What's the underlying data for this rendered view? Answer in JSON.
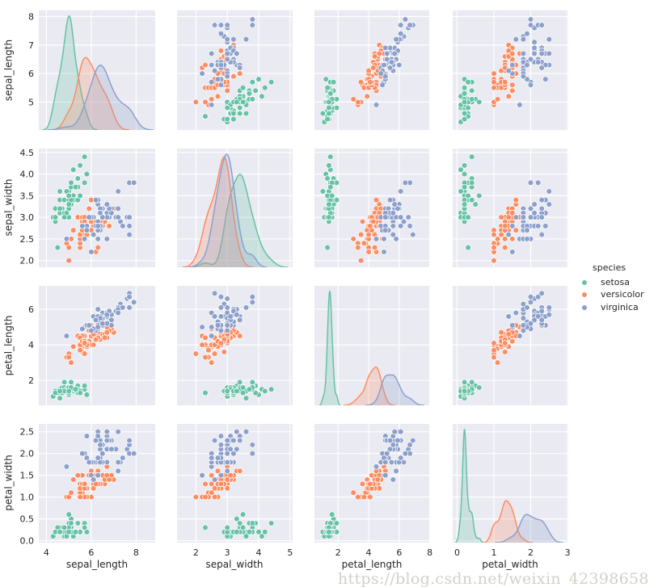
{
  "chart_data": {
    "type": "scatter",
    "kind": "pairplot",
    "diag_kind": "kde",
    "background": "#eaeaf2",
    "grid": true,
    "variables": [
      "sepal_length",
      "sepal_width",
      "petal_length",
      "petal_width"
    ],
    "axes": {
      "sepal_length": {
        "lim_x": [
          3.66,
          8.85
        ],
        "lim_y": [
          4.02,
          8.22
        ],
        "x_ticks": [
          4,
          6,
          8
        ],
        "x_tick_labels": [
          "4",
          "6",
          "8"
        ],
        "y_ticks": [
          5,
          6,
          7,
          8
        ],
        "y_tick_labels": [
          "5",
          "6",
          "7",
          "8"
        ]
      },
      "sepal_width": {
        "lim_x": [
          1.4,
          5.08
        ],
        "lim_y": [
          1.845,
          4.59
        ],
        "x_ticks": [
          2,
          3,
          4,
          5
        ],
        "x_tick_labels": [
          "2",
          "3",
          "4",
          "5"
        ],
        "y_ticks": [
          2.0,
          2.5,
          3.0,
          3.5,
          4.0,
          4.5
        ],
        "y_tick_labels": [
          "2.0",
          "2.5",
          "3.0",
          "3.5",
          "4.0",
          "4.5"
        ]
      },
      "petal_length": {
        "lim_x": [
          0.45,
          8.02
        ],
        "lim_y": [
          0.6,
          7.32
        ],
        "x_ticks": [
          2,
          4,
          6,
          8
        ],
        "x_tick_labels": [
          "2",
          "4",
          "6",
          "8"
        ],
        "y_ticks": [
          2,
          4,
          6
        ],
        "y_tick_labels": [
          "2",
          "4",
          "6"
        ]
      },
      "petal_width": {
        "lim_x": [
          -0.12,
          3.02
        ],
        "lim_y": [
          -0.045,
          2.68
        ],
        "x_ticks": [
          0,
          1,
          2,
          3
        ],
        "x_tick_labels": [
          "0",
          "1",
          "2",
          "3"
        ],
        "y_ticks": [
          0.0,
          0.5,
          1.0,
          1.5,
          2.0,
          2.5
        ],
        "y_tick_labels": [
          "0.0",
          "0.5",
          "1.0",
          "1.5",
          "2.0",
          "2.5"
        ]
      }
    },
    "legend": {
      "title": "species",
      "placement": "right"
    },
    "series": [
      {
        "name": "setosa",
        "color": "#66c2a5",
        "rows": [
          [
            5.1,
            3.5,
            1.4,
            0.2
          ],
          [
            4.9,
            3.0,
            1.4,
            0.2
          ],
          [
            4.7,
            3.2,
            1.3,
            0.2
          ],
          [
            4.6,
            3.1,
            1.5,
            0.2
          ],
          [
            5.0,
            3.6,
            1.4,
            0.2
          ],
          [
            5.4,
            3.9,
            1.7,
            0.4
          ],
          [
            4.6,
            3.4,
            1.4,
            0.3
          ],
          [
            5.0,
            3.4,
            1.5,
            0.2
          ],
          [
            4.4,
            2.9,
            1.4,
            0.2
          ],
          [
            4.9,
            3.1,
            1.5,
            0.1
          ],
          [
            5.4,
            3.7,
            1.5,
            0.2
          ],
          [
            4.8,
            3.4,
            1.6,
            0.2
          ],
          [
            4.8,
            3.0,
            1.4,
            0.1
          ],
          [
            4.3,
            3.0,
            1.1,
            0.1
          ],
          [
            5.8,
            4.0,
            1.2,
            0.2
          ],
          [
            5.7,
            4.4,
            1.5,
            0.4
          ],
          [
            5.4,
            3.9,
            1.3,
            0.4
          ],
          [
            5.1,
            3.5,
            1.4,
            0.3
          ],
          [
            5.7,
            3.8,
            1.7,
            0.3
          ],
          [
            5.1,
            3.8,
            1.5,
            0.3
          ],
          [
            5.4,
            3.4,
            1.7,
            0.2
          ],
          [
            5.1,
            3.7,
            1.5,
            0.4
          ],
          [
            4.6,
            3.6,
            1.0,
            0.2
          ],
          [
            5.1,
            3.3,
            1.7,
            0.5
          ],
          [
            4.8,
            3.4,
            1.9,
            0.2
          ],
          [
            5.0,
            3.0,
            1.6,
            0.2
          ],
          [
            5.0,
            3.4,
            1.6,
            0.4
          ],
          [
            5.2,
            3.5,
            1.5,
            0.2
          ],
          [
            5.2,
            3.4,
            1.4,
            0.2
          ],
          [
            4.7,
            3.2,
            1.6,
            0.2
          ],
          [
            4.8,
            3.1,
            1.6,
            0.2
          ],
          [
            5.4,
            3.4,
            1.5,
            0.4
          ],
          [
            5.2,
            4.1,
            1.5,
            0.1
          ],
          [
            5.5,
            4.2,
            1.4,
            0.2
          ],
          [
            4.9,
            3.1,
            1.5,
            0.2
          ],
          [
            5.0,
            3.2,
            1.2,
            0.2
          ],
          [
            5.5,
            3.5,
            1.3,
            0.2
          ],
          [
            4.9,
            3.6,
            1.4,
            0.1
          ],
          [
            4.4,
            3.0,
            1.3,
            0.2
          ],
          [
            5.1,
            3.4,
            1.5,
            0.2
          ],
          [
            5.0,
            3.5,
            1.3,
            0.3
          ],
          [
            4.5,
            2.3,
            1.3,
            0.3
          ],
          [
            4.4,
            3.2,
            1.3,
            0.2
          ],
          [
            5.0,
            3.5,
            1.6,
            0.6
          ],
          [
            5.1,
            3.8,
            1.9,
            0.4
          ],
          [
            4.8,
            3.0,
            1.4,
            0.3
          ],
          [
            5.1,
            3.8,
            1.6,
            0.2
          ],
          [
            4.6,
            3.2,
            1.4,
            0.2
          ],
          [
            5.3,
            3.7,
            1.5,
            0.2
          ],
          [
            5.0,
            3.3,
            1.4,
            0.2
          ]
        ]
      },
      {
        "name": "versicolor",
        "color": "#fc8d62",
        "rows": [
          [
            7.0,
            3.2,
            4.7,
            1.4
          ],
          [
            6.4,
            3.2,
            4.5,
            1.5
          ],
          [
            6.9,
            3.1,
            4.9,
            1.5
          ],
          [
            5.5,
            2.3,
            4.0,
            1.3
          ],
          [
            6.5,
            2.8,
            4.6,
            1.5
          ],
          [
            5.7,
            2.8,
            4.5,
            1.3
          ],
          [
            6.3,
            3.3,
            4.7,
            1.6
          ],
          [
            4.9,
            2.4,
            3.3,
            1.0
          ],
          [
            6.6,
            2.9,
            4.6,
            1.3
          ],
          [
            5.2,
            2.7,
            3.9,
            1.4
          ],
          [
            5.0,
            2.0,
            3.5,
            1.0
          ],
          [
            5.9,
            3.0,
            4.2,
            1.5
          ],
          [
            6.0,
            2.2,
            4.0,
            1.0
          ],
          [
            6.1,
            2.9,
            4.7,
            1.4
          ],
          [
            5.6,
            2.9,
            3.6,
            1.3
          ],
          [
            6.7,
            3.1,
            4.4,
            1.4
          ],
          [
            5.6,
            3.0,
            4.5,
            1.5
          ],
          [
            5.8,
            2.7,
            4.1,
            1.0
          ],
          [
            6.2,
            2.2,
            4.5,
            1.5
          ],
          [
            5.6,
            2.5,
            3.9,
            1.1
          ],
          [
            5.9,
            3.2,
            4.8,
            1.8
          ],
          [
            6.1,
            2.8,
            4.0,
            1.3
          ],
          [
            6.3,
            2.5,
            4.9,
            1.5
          ],
          [
            6.1,
            2.8,
            4.7,
            1.2
          ],
          [
            6.4,
            2.9,
            4.3,
            1.3
          ],
          [
            6.6,
            3.0,
            4.4,
            1.4
          ],
          [
            6.8,
            2.8,
            4.8,
            1.4
          ],
          [
            6.7,
            3.0,
            5.0,
            1.7
          ],
          [
            6.0,
            2.9,
            4.5,
            1.5
          ],
          [
            5.7,
            2.6,
            3.5,
            1.0
          ],
          [
            5.5,
            2.4,
            3.8,
            1.1
          ],
          [
            5.5,
            2.4,
            3.7,
            1.0
          ],
          [
            5.8,
            2.7,
            3.9,
            1.2
          ],
          [
            6.0,
            2.7,
            5.1,
            1.6
          ],
          [
            5.4,
            3.0,
            4.5,
            1.5
          ],
          [
            6.0,
            3.4,
            4.5,
            1.6
          ],
          [
            6.7,
            3.1,
            4.7,
            1.5
          ],
          [
            6.3,
            2.3,
            4.4,
            1.3
          ],
          [
            5.6,
            3.0,
            4.1,
            1.3
          ],
          [
            5.5,
            2.5,
            4.0,
            1.3
          ],
          [
            5.5,
            2.6,
            4.4,
            1.2
          ],
          [
            6.1,
            3.0,
            4.6,
            1.4
          ],
          [
            5.8,
            2.6,
            4.0,
            1.2
          ],
          [
            5.0,
            2.3,
            3.3,
            1.0
          ],
          [
            5.6,
            2.7,
            4.2,
            1.3
          ],
          [
            5.7,
            3.0,
            4.2,
            1.2
          ],
          [
            5.7,
            2.9,
            4.2,
            1.3
          ],
          [
            6.2,
            2.9,
            4.3,
            1.3
          ],
          [
            5.1,
            2.5,
            3.0,
            1.1
          ],
          [
            5.7,
            2.8,
            4.1,
            1.3
          ]
        ]
      },
      {
        "name": "virginica",
        "color": "#8da0cb",
        "rows": [
          [
            6.3,
            3.3,
            6.0,
            2.5
          ],
          [
            5.8,
            2.7,
            5.1,
            1.9
          ],
          [
            7.1,
            3.0,
            5.9,
            2.1
          ],
          [
            6.3,
            2.9,
            5.6,
            1.8
          ],
          [
            6.5,
            3.0,
            5.8,
            2.2
          ],
          [
            7.6,
            3.0,
            6.6,
            2.1
          ],
          [
            4.9,
            2.5,
            4.5,
            1.7
          ],
          [
            7.3,
            2.9,
            6.3,
            1.8
          ],
          [
            6.7,
            2.5,
            5.8,
            1.8
          ],
          [
            7.2,
            3.6,
            6.1,
            2.5
          ],
          [
            6.5,
            3.2,
            5.1,
            2.0
          ],
          [
            6.4,
            2.7,
            5.3,
            1.9
          ],
          [
            6.8,
            3.0,
            5.5,
            2.1
          ],
          [
            5.7,
            2.5,
            5.0,
            2.0
          ],
          [
            5.8,
            2.8,
            5.1,
            2.4
          ],
          [
            6.4,
            3.2,
            5.3,
            2.3
          ],
          [
            6.5,
            3.0,
            5.5,
            1.8
          ],
          [
            7.7,
            3.8,
            6.7,
            2.2
          ],
          [
            7.7,
            2.6,
            6.9,
            2.3
          ],
          [
            6.0,
            2.2,
            5.0,
            1.5
          ],
          [
            6.9,
            3.2,
            5.7,
            2.3
          ],
          [
            5.6,
            2.8,
            4.9,
            2.0
          ],
          [
            7.7,
            2.8,
            6.7,
            2.0
          ],
          [
            6.3,
            2.7,
            4.9,
            1.8
          ],
          [
            6.7,
            3.3,
            5.7,
            2.1
          ],
          [
            7.2,
            3.2,
            6.0,
            1.8
          ],
          [
            6.2,
            2.8,
            4.8,
            1.8
          ],
          [
            6.1,
            3.0,
            4.9,
            1.8
          ],
          [
            6.4,
            2.8,
            5.6,
            2.1
          ],
          [
            7.2,
            3.0,
            5.8,
            1.6
          ],
          [
            7.4,
            2.8,
            6.1,
            1.9
          ],
          [
            7.9,
            3.8,
            6.4,
            2.0
          ],
          [
            6.4,
            2.8,
            5.6,
            2.2
          ],
          [
            6.3,
            2.8,
            5.1,
            1.5
          ],
          [
            6.1,
            2.6,
            5.6,
            1.4
          ],
          [
            7.7,
            3.0,
            6.1,
            2.3
          ],
          [
            6.3,
            3.4,
            5.6,
            2.4
          ],
          [
            6.4,
            3.1,
            5.5,
            1.8
          ],
          [
            6.0,
            3.0,
            4.8,
            1.8
          ],
          [
            6.9,
            3.1,
            5.4,
            2.1
          ],
          [
            6.7,
            3.1,
            5.6,
            2.4
          ],
          [
            6.9,
            3.1,
            5.1,
            2.3
          ],
          [
            5.8,
            2.7,
            5.1,
            1.9
          ],
          [
            6.8,
            3.2,
            5.9,
            2.3
          ],
          [
            6.7,
            3.3,
            5.7,
            2.5
          ],
          [
            6.7,
            3.0,
            5.2,
            2.3
          ],
          [
            6.3,
            2.5,
            5.0,
            1.9
          ],
          [
            6.5,
            3.0,
            5.2,
            2.0
          ],
          [
            6.2,
            3.4,
            5.4,
            2.3
          ],
          [
            5.9,
            3.0,
            5.1,
            1.8
          ]
        ]
      }
    ]
  },
  "labels": {
    "sepal_length": "sepal_length",
    "sepal_width": "sepal_width",
    "petal_length": "petal_length",
    "petal_width": "petal_width"
  },
  "watermark": "https://blog.csdn.net/weixin_42398658"
}
